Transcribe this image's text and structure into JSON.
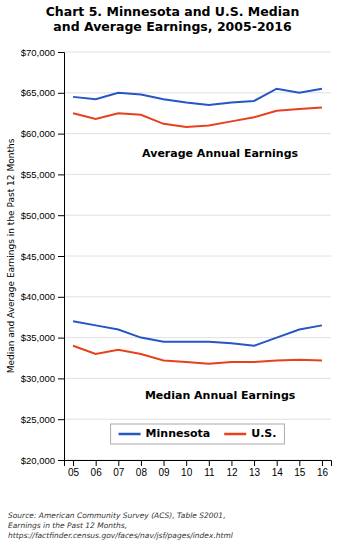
{
  "chart_data": {
    "type": "line",
    "title": "Chart 5. Minnesota and U.S. Median\nand Average Earnings, 2005-2016",
    "y_label": "Median and Average Earnings in the Past 12 Months",
    "source": "Source: American Community Survey (ACS), Table S2001,\nEarnings in the Past 12 Months,\nhttps://factfinder.census.gov/faces/nav/jsf/pages/index.html",
    "x": [
      2005,
      2006,
      2007,
      2008,
      2009,
      2010,
      2011,
      2012,
      2013,
      2014,
      2015,
      2016
    ],
    "series": [
      {
        "name": "Minnesota",
        "color": "#2457c5",
        "values": [
          64500,
          64200,
          65000,
          64800,
          64200,
          63800,
          63500,
          63800,
          64000,
          65500,
          65000,
          65500
        ]
      },
      {
        "name": "U.S.",
        "color": "#e8401c",
        "values": [
          62500,
          61800,
          62500,
          62300,
          61200,
          60800,
          61000,
          61500,
          62000,
          62800,
          63000,
          63200
        ]
      },
      {
        "color": "#2457c5",
        "values": [
          37000,
          36500,
          36000,
          35000,
          34500,
          34500,
          34500,
          34300,
          34000,
          35000,
          36000,
          36500
        ]
      },
      {
        "color": "#e8401c",
        "values": [
          34000,
          33000,
          33500,
          33000,
          32200,
          32000,
          31800,
          32000,
          32000,
          32200,
          32300,
          32200
        ]
      }
    ],
    "annotations": [
      {
        "text": "Average Annual Earnings",
        "x": 2011.5,
        "y": 57500
      },
      {
        "text": "Median Annual Earnings",
        "x": 2011.5,
        "y": 27800
      }
    ],
    "xlim": [
      2004.6,
      2016.4
    ],
    "xticks": [
      {
        "value": 2005,
        "label": "05"
      },
      {
        "value": 2006,
        "label": "06"
      },
      {
        "value": 2007,
        "label": "07"
      },
      {
        "value": 2008,
        "label": "08"
      },
      {
        "value": 2009,
        "label": "09"
      },
      {
        "value": 2010,
        "label": "10"
      },
      {
        "value": 2011,
        "label": "11"
      },
      {
        "value": 2012,
        "label": "12"
      },
      {
        "value": 2013,
        "label": "13"
      },
      {
        "value": 2014,
        "label": "14"
      },
      {
        "value": 2015,
        "label": "15"
      },
      {
        "value": 2016,
        "label": "16"
      }
    ],
    "ylim": [
      20000,
      70000
    ],
    "yticks": [
      {
        "value": 20000,
        "label": "$20,000"
      },
      {
        "value": 25000,
        "label": "$25,000"
      },
      {
        "value": 30000,
        "label": "$30,000"
      },
      {
        "value": 35000,
        "label": "$35,000"
      },
      {
        "value": 40000,
        "label": "$40,000"
      },
      {
        "value": 45000,
        "label": "$45,000"
      },
      {
        "value": 50000,
        "label": "$50,000"
      },
      {
        "value": 55000,
        "label": "$55,000"
      },
      {
        "value": 60000,
        "label": "$60,000"
      },
      {
        "value": 65000,
        "label": "$65,000"
      },
      {
        "value": 70000,
        "label": "$70,000"
      }
    ],
    "grid": true,
    "legend": "lower center"
  }
}
